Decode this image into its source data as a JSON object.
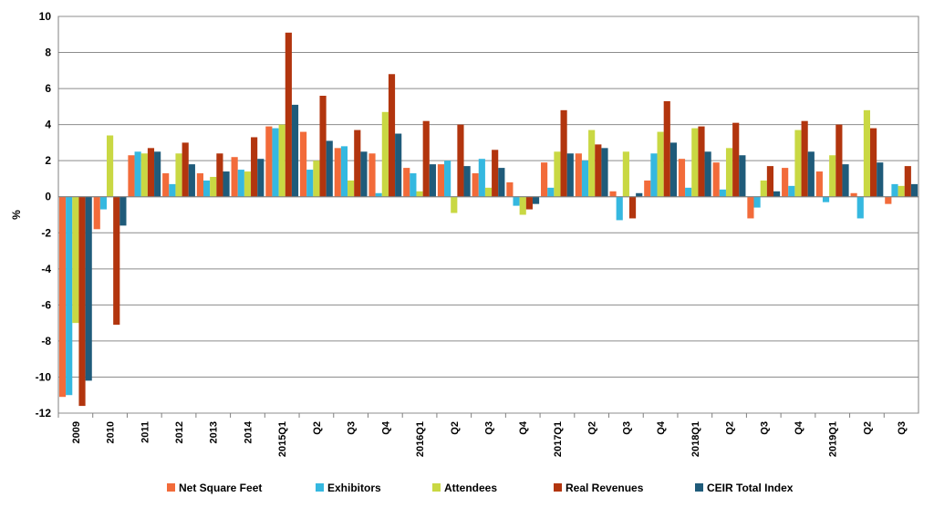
{
  "chart_data": {
    "type": "bar",
    "title": "",
    "xlabel": "",
    "ylabel": "%",
    "ylim": [
      -12,
      10
    ],
    "yticks": [
      10,
      8,
      6,
      4,
      2,
      0,
      -2,
      -4,
      -6,
      -8,
      -10,
      -12
    ],
    "grid": true,
    "legend_position": "bottom",
    "categories": [
      "2009",
      "2010",
      "2011",
      "2012",
      "2013",
      "2014",
      "2015Q1",
      "Q2",
      "Q3",
      "Q4",
      "2016Q1",
      "Q2",
      "Q3",
      "Q4",
      "2017Q1",
      "Q2",
      "Q3",
      "Q4",
      "2018Q1",
      "Q2",
      "Q3",
      "Q4",
      "2019Q1",
      "Q2",
      "Q3"
    ],
    "series": [
      {
        "name": "Net Square Feet",
        "color": "#f26b3a",
        "values": [
          -11.1,
          -1.8,
          2.3,
          1.3,
          1.3,
          2.2,
          3.9,
          3.6,
          2.7,
          2.4,
          1.6,
          1.8,
          1.3,
          0.8,
          1.9,
          2.4,
          0.3,
          0.9,
          2.1,
          1.9,
          -1.2,
          1.6,
          1.4,
          0.2,
          -0.4
        ]
      },
      {
        "name": "Exhibitors",
        "color": "#35b8e0",
        "values": [
          -11.0,
          -0.7,
          2.5,
          0.7,
          0.9,
          1.5,
          3.8,
          1.5,
          2.8,
          0.2,
          1.3,
          2.0,
          2.1,
          -0.5,
          0.5,
          2.0,
          -1.3,
          2.4,
          0.5,
          0.4,
          -0.6,
          0.6,
          -0.3,
          -1.2,
          0.7
        ]
      },
      {
        "name": "Attendees",
        "color": "#c9d843",
        "values": [
          -7.0,
          3.4,
          2.4,
          2.4,
          1.1,
          1.4,
          4.0,
          2.0,
          0.9,
          4.7,
          0.3,
          -0.9,
          0.5,
          -1.0,
          2.5,
          3.7,
          2.5,
          3.6,
          3.8,
          2.7,
          0.9,
          3.7,
          2.3,
          4.8,
          0.6
        ]
      },
      {
        "name": "Real Revenues",
        "color": "#b2350e",
        "values": [
          -11.6,
          -7.1,
          2.7,
          3.0,
          2.4,
          3.3,
          9.1,
          5.6,
          3.7,
          6.8,
          4.2,
          4.0,
          2.6,
          -0.7,
          4.8,
          2.9,
          -1.2,
          5.3,
          3.9,
          4.1,
          1.7,
          4.2,
          4.0,
          3.8,
          1.7
        ]
      },
      {
        "name": "CEIR Total Index",
        "color": "#1f5b7a",
        "values": [
          -10.2,
          -1.6,
          2.5,
          1.8,
          1.4,
          2.1,
          5.1,
          3.1,
          2.5,
          3.5,
          1.8,
          1.7,
          1.6,
          -0.4,
          2.4,
          2.7,
          0.2,
          3.0,
          2.5,
          2.3,
          0.3,
          2.5,
          1.8,
          1.9,
          0.7
        ]
      }
    ]
  }
}
